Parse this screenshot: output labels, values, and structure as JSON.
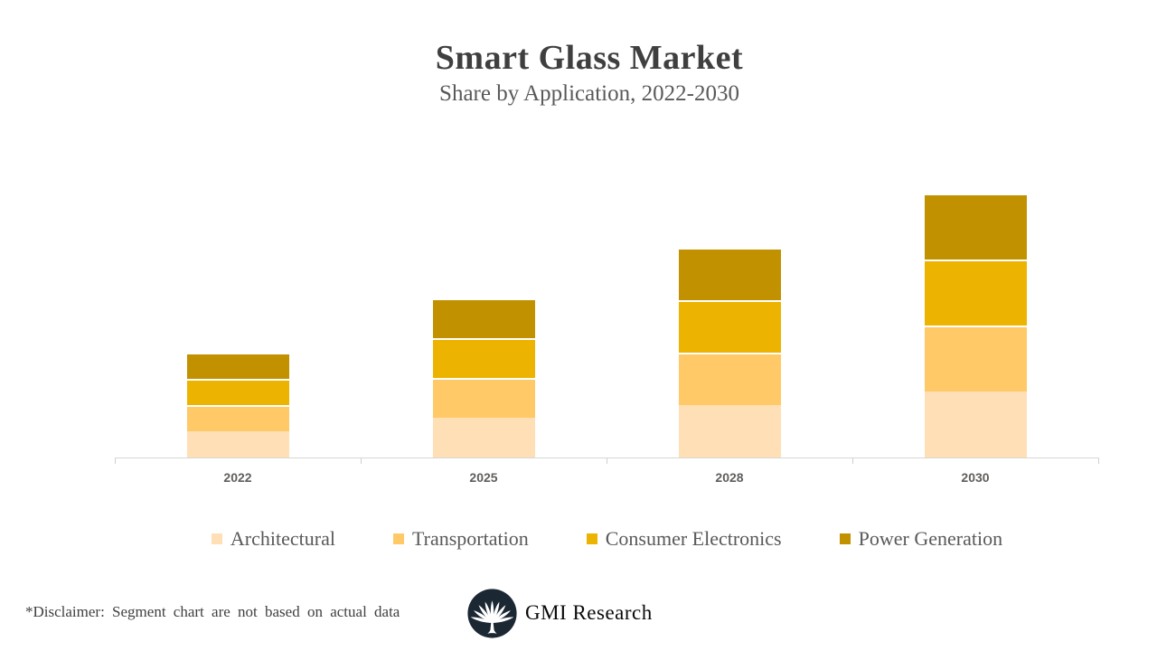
{
  "header": {
    "title": "Smart Glass Market",
    "subtitle": "Share by Application, 2022-2030"
  },
  "chart_data": {
    "type": "bar",
    "stacked": true,
    "categories": [
      "2022",
      "2025",
      "2028",
      "2030"
    ],
    "series": [
      {
        "name": "Architectural",
        "color": "#FFDFB5",
        "values": [
          10,
          15,
          20,
          25
        ]
      },
      {
        "name": "Transportation",
        "color": "#FFC967",
        "values": [
          10,
          15,
          20,
          25
        ]
      },
      {
        "name": "Consumer Electronics",
        "color": "#EDB301",
        "values": [
          10,
          15,
          20,
          25
        ]
      },
      {
        "name": "Power Generation",
        "color": "#C29100",
        "values": [
          10,
          15,
          20,
          25
        ]
      }
    ],
    "ylim": [
      0,
      100
    ],
    "grid": false,
    "y_axis_visible": false,
    "legend_position": "bottom",
    "axis_line_color": "#d6d6d6",
    "x_label_color": "#605e5c"
  },
  "footer": {
    "disclaimer": "*Disclaimer: Segment chart are not based on actual data",
    "brand_name": "GMI Research"
  },
  "colors": {
    "title_text": "#3f3f3f",
    "subtitle_text": "#595959",
    "legend_text": "#595959",
    "logo_navy": "#1b2733"
  }
}
